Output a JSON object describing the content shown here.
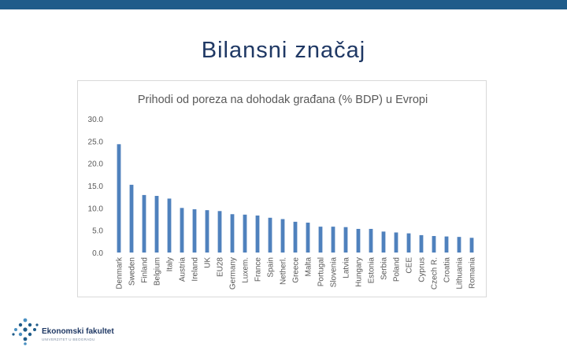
{
  "slide": {
    "title": "Bilansni značaj"
  },
  "logo": {
    "name": "Ekonomski fakultet",
    "subtitle": "UNIVERZITET U BEOGRADU",
    "color": "#1f5c8a"
  },
  "chart_data": {
    "type": "bar",
    "title": "Prihodi od poreza na dohodak građana (% BDP) u Evropi",
    "xlabel": "",
    "ylabel": "",
    "ylim": [
      0,
      30
    ],
    "yticks": [
      "0.0",
      "5.0",
      "10.0",
      "15.0",
      "20.0",
      "25.0",
      "30.0"
    ],
    "grid": false,
    "bar_color": "#4f81bd",
    "categories": [
      "Denmark",
      "Sweden",
      "Finland",
      "Belgium",
      "Italy",
      "Austria",
      "Ireland",
      "UK",
      "EU28",
      "Germany",
      "Luxem.",
      "France",
      "Spain",
      "Netherl.",
      "Greece",
      "Malta",
      "Portugal",
      "Slovenia",
      "Latvia",
      "Hungary",
      "Estonia",
      "Serbia",
      "Poland",
      "CEE",
      "Cyprus",
      "Czech R.",
      "Croatia",
      "Lithuania",
      "Romania"
    ],
    "values": [
      24.3,
      15.2,
      12.9,
      12.7,
      12.1,
      10.0,
      9.7,
      9.5,
      9.3,
      8.6,
      8.5,
      8.3,
      7.8,
      7.5,
      6.9,
      6.7,
      5.8,
      5.8,
      5.7,
      5.3,
      5.3,
      4.7,
      4.5,
      4.3,
      3.9,
      3.7,
      3.6,
      3.5,
      3.3
    ]
  }
}
